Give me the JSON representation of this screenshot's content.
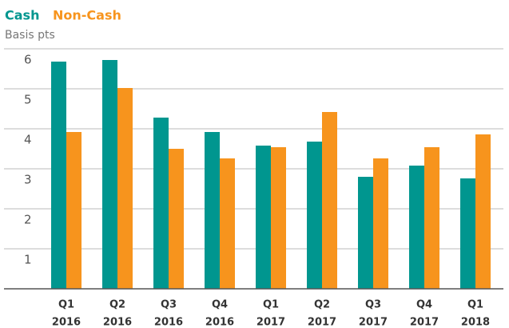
{
  "chart_data": {
    "type": "bar",
    "subtitle": "Basis pts",
    "categories": [
      [
        "Q1",
        "2016"
      ],
      [
        "Q2",
        "2016"
      ],
      [
        "Q3",
        "2016"
      ],
      [
        "Q4",
        "2016"
      ],
      [
        "Q1",
        "2017"
      ],
      [
        "Q2",
        "2017"
      ],
      [
        "Q3",
        "2017"
      ],
      [
        "Q4",
        "2017"
      ],
      [
        "Q1",
        "2018"
      ]
    ],
    "series": [
      {
        "name": "Cash",
        "color": "#00968f",
        "values": [
          5.68,
          5.72,
          4.28,
          3.92,
          3.58,
          3.68,
          2.8,
          3.08,
          2.76
        ]
      },
      {
        "name": "Non-Cash",
        "color": "#f7941d",
        "values": [
          3.92,
          5.02,
          3.5,
          3.26,
          3.54,
          4.42,
          3.26,
          3.54,
          3.86
        ]
      }
    ],
    "ylim": [
      0,
      6
    ],
    "yticks": [
      1,
      2,
      3,
      4,
      5,
      6
    ],
    "grid": true
  }
}
